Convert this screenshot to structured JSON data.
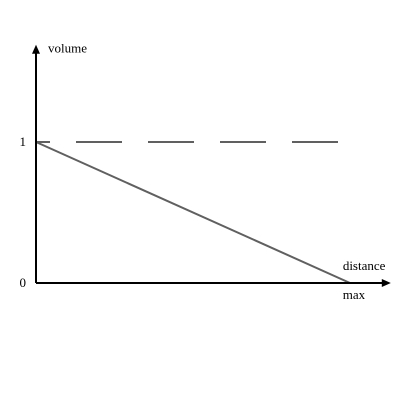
{
  "chart_data": {
    "type": "line",
    "xlabel": "distance",
    "ylabel": "volume",
    "x_ticks": [
      {
        "value": 1,
        "label": "max"
      }
    ],
    "y_ticks": [
      {
        "value": 0,
        "label": "0"
      },
      {
        "value": 1,
        "label": "1"
      }
    ],
    "xlim": [
      0,
      1.13
    ],
    "ylim": [
      0,
      1.69
    ],
    "grid": false,
    "series": [
      {
        "style": "solid",
        "color": "#606060",
        "x": [
          0,
          1
        ],
        "y": [
          1,
          0
        ]
      },
      {
        "style": "dashed",
        "color": "#606060",
        "x": [
          0,
          1
        ],
        "y": [
          1,
          1
        ]
      }
    ],
    "colors": {
      "axis": "#000000",
      "line": "#606060"
    }
  }
}
